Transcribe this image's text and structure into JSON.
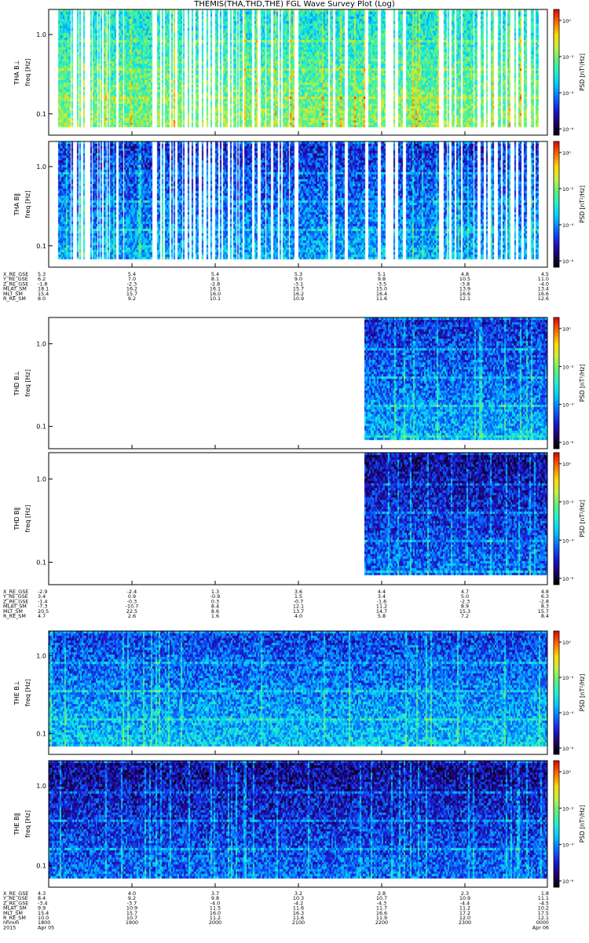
{
  "title": "THEMIS(THA,THD,THE) FGL Wave Survey Plot (Log)",
  "colors": {
    "colormap": [
      "#000000",
      "#20006a",
      "#1a1ad8",
      "#0a6cff",
      "#00c8ff",
      "#22f0d0",
      "#5ef07a",
      "#c8f040",
      "#ffd800",
      "#ff6a00",
      "#e00000"
    ],
    "gap": "#ffffff"
  },
  "chart_data": {
    "type": "heatmap",
    "colorbar_label": "PSD [nT²/Hz]",
    "colorbar_ticks": [
      "10⁰",
      "10⁻²",
      "10⁻⁴",
      "10⁻⁶"
    ],
    "freq_ticks": [
      "1.0",
      "0.1"
    ],
    "ylabel": "freq [Hz]",
    "time_range": [
      "2015-04-05 18:00",
      "2015-04-06 00:00"
    ],
    "yscale": "log",
    "blocks": [
      {
        "probe": "THA",
        "panels": [
          {
            "label": "THA B⊥",
            "intensity": 0.55
          },
          {
            "label": "THA B‖",
            "intensity": 0.3
          }
        ],
        "data_intervals": [
          [
            0.11,
            0.24
          ],
          [
            0.25,
            0.26
          ],
          [
            0.27,
            0.29
          ],
          [
            0.34,
            0.345
          ],
          [
            0.37,
            0.38
          ],
          [
            0.42,
            0.425
          ],
          [
            0.47,
            0.475
          ],
          [
            0.5,
            0.52
          ],
          [
            0.53,
            0.58
          ],
          [
            0.6,
            0.61
          ],
          [
            0.62,
            0.63
          ],
          [
            0.66,
            0.67
          ],
          [
            0.68,
            0.69
          ],
          [
            0.71,
            0.715
          ],
          [
            0.74,
            0.8
          ],
          [
            0.84,
            0.9
          ],
          [
            0.91,
            1.0
          ],
          [
            1.0,
            1.25
          ],
          [
            1.3,
            1.34
          ],
          [
            1.36,
            1.37
          ],
          [
            1.4,
            1.45
          ],
          [
            1.47,
            1.48
          ],
          [
            1.5,
            1.52
          ],
          [
            1.55,
            1.6
          ],
          [
            1.62,
            1.63
          ],
          [
            1.67,
            1.69
          ],
          [
            1.72,
            1.74
          ],
          [
            1.77,
            1.8
          ],
          [
            1.84,
            1.86
          ],
          [
            1.9,
            1.92
          ],
          [
            1.95,
            1.96
          ],
          [
            2.0,
            2.04
          ],
          [
            2.06,
            2.07
          ],
          [
            2.1,
            2.15
          ],
          [
            2.18,
            2.2
          ],
          [
            2.22,
            2.26
          ],
          [
            2.27,
            2.28
          ],
          [
            2.3,
            2.32
          ],
          [
            2.35,
            2.45
          ],
          [
            2.48,
            2.5
          ],
          [
            2.55,
            2.6
          ],
          [
            2.62,
            2.66
          ],
          [
            2.7,
            2.75
          ],
          [
            2.78,
            2.8
          ],
          [
            2.82,
            2.88
          ],
          [
            2.9,
            2.95
          ],
          [
            3.0,
            3.35
          ],
          [
            3.38,
            3.42
          ],
          [
            3.45,
            3.55
          ],
          [
            3.6,
            3.8
          ],
          [
            3.85,
            3.95
          ],
          [
            4.0,
            4.05
          ],
          [
            4.15,
            4.17
          ],
          [
            4.2,
            4.25
          ],
          [
            4.3,
            4.7
          ],
          [
            4.75,
            4.78
          ],
          [
            4.8,
            4.82
          ],
          [
            4.85,
            4.88
          ],
          [
            4.9,
            4.95
          ],
          [
            4.98,
            5.1
          ],
          [
            5.12,
            5.16
          ],
          [
            5.2,
            5.23
          ],
          [
            5.26,
            5.28
          ],
          [
            5.32,
            5.35
          ],
          [
            5.4,
            5.43
          ],
          [
            5.46,
            5.5
          ],
          [
            5.52,
            5.55
          ],
          [
            5.6,
            5.62
          ],
          [
            5.65,
            5.68
          ],
          [
            5.72,
            5.75
          ],
          [
            5.8,
            5.83
          ],
          [
            5.86,
            5.9
          ]
        ],
        "ephemeris": {
          "labels": [
            "X_RE_GSE",
            "Y_RE_GSE",
            "Z_RE_GSE",
            "MLAT_SM",
            "MLT_SM",
            "R_RE_SM"
          ],
          "columns": [
            [
              "5.3",
              "6.2",
              "-1.8",
              "18.1",
              "15.4",
              "8.0"
            ],
            [
              "5.4",
              "7.0",
              "-2.3",
              "16.2",
              "15.7",
              "9.2"
            ],
            [
              "5.4",
              "8.1",
              "-2.8",
              "16.1",
              "16.0",
              "10.1"
            ],
            [
              "5.3",
              "9.0",
              "-3.1",
              "15.7",
              "16.2",
              "10.9"
            ],
            [
              "5.1",
              "9.8",
              "-3.5",
              "15.0",
              "16.4",
              "11.6"
            ],
            [
              "4.8",
              "10.5",
              "-3.8",
              "13.9",
              "16.6",
              "12.1"
            ],
            [
              "4.5",
              "11.0",
              "-4.0",
              "13.4",
              "16.6",
              "12.6"
            ]
          ]
        }
      },
      {
        "probe": "THD",
        "panels": [
          {
            "label": "THD B⊥",
            "intensity": 0.3
          },
          {
            "label": "THD B‖",
            "intensity": 0.22
          }
        ],
        "data_intervals": [
          [
            3.8,
            6.0
          ]
        ],
        "ephemeris": {
          "labels": [
            "X_RE_GSE",
            "Y_RE_GSE",
            "Z_RE_GSE",
            "MLAT_SM",
            "MLT_SM",
            "R_RE_SM"
          ],
          "columns": [
            [
              "-2.9",
              "3.4",
              "-1.4",
              "-7.3",
              "20.5",
              "4.7"
            ],
            [
              "-2.4",
              "0.9",
              "-0.3",
              "-10.7",
              "22.5",
              "2.6"
            ],
            [
              "1.3",
              "-0.9",
              "0.3",
              "8.4",
              "8.6",
              "1.6"
            ],
            [
              "3.6",
              "1.5",
              "-0.7",
              "12.1",
              "13.7",
              "4.0"
            ],
            [
              "4.4",
              "3.4",
              "-1.6",
              "11.2",
              "14.7",
              "5.8"
            ],
            [
              "4.7",
              "5.0",
              "-2.3",
              "8.9",
              "15.3",
              "7.2"
            ],
            [
              "4.8",
              "6.3",
              "-2.8",
              "8.3",
              "15.7",
              "8.4"
            ]
          ]
        }
      },
      {
        "probe": "THE",
        "panels": [
          {
            "label": "THE B⊥",
            "intensity": 0.33
          },
          {
            "label": "THE B‖",
            "intensity": 0.22
          }
        ],
        "data_intervals": [
          [
            0.0,
            6.0
          ]
        ],
        "ephemeris": {
          "labels": [
            "X_RE_GSE",
            "Y_RE_GSE",
            "Z_RE_GSE",
            "MLAT_SM",
            "MLT_SM",
            "R_RE_SM",
            "hhmm",
            "2015"
          ],
          "columns": [
            [
              "4.3",
              "8.4",
              "-3.4",
              "9.9",
              "15.4",
              "10.0",
              "1800",
              "Apr 05"
            ],
            [
              "4.0",
              "9.2",
              "-3.7",
              "10.9",
              "15.7",
              "10.7",
              "1900",
              ""
            ],
            [
              "3.7",
              "9.8",
              "-4.0",
              "11.5",
              "16.0",
              "11.2",
              "2000",
              ""
            ],
            [
              "3.2",
              "10.3",
              "-4.2",
              "11.6",
              "16.3",
              "11.6",
              "2100",
              ""
            ],
            [
              "2.8",
              "10.7",
              "-4.3",
              "11.7",
              "16.6",
              "11.9",
              "2200",
              ""
            ],
            [
              "2.3",
              "10.9",
              "-4.4",
              "11.2",
              "17.2",
              "12.0",
              "2300",
              ""
            ],
            [
              "1.8",
              "11.1",
              "-4.5",
              "10.2",
              "17.5",
              "12.1",
              "0000",
              "Apr 06"
            ]
          ]
        }
      }
    ]
  }
}
